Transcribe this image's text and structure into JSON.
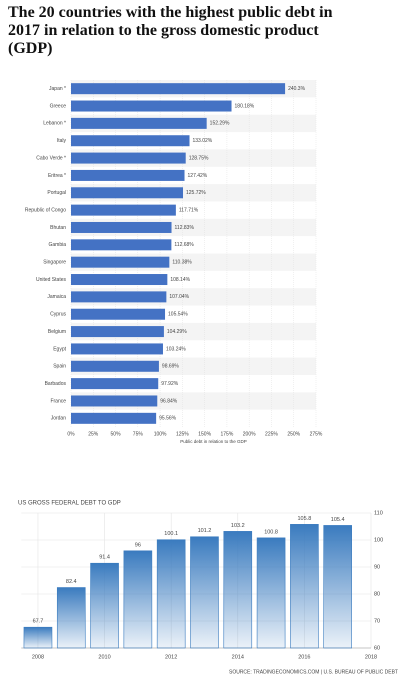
{
  "chart_data": [
    {
      "type": "barh",
      "title": "The 20 countries with the highest public debt in 2017 in relation to the gross domestic product (GDP)",
      "categories": [
        "Japan *",
        "Greece",
        "Lebanon *",
        "Italy",
        "Cabo Verde *",
        "Eritrea *",
        "Portugal",
        "Republic of Congo",
        "Bhutan",
        "Gambia",
        "Singapore",
        "United States",
        "Jamaica",
        "Cyprus",
        "Belgium",
        "Egypt",
        "Spain",
        "Barbados",
        "France",
        "Jordan"
      ],
      "values": [
        240.3,
        180.18,
        152.29,
        133.02,
        128.75,
        127.42,
        125.72,
        117.71,
        112.83,
        112.68,
        110.38,
        108.14,
        107.04,
        105.54,
        104.29,
        103.24,
        98.69,
        97.92,
        96.84,
        95.56
      ],
      "value_labels": [
        "240.3%",
        "180.18%",
        "152.29%",
        "133.02%",
        "128.75%",
        "127.42%",
        "125.72%",
        "117.71%",
        "112.83%",
        "112.68%",
        "110.38%",
        "108.14%",
        "107.04%",
        "105.54%",
        "104.29%",
        "103.24%",
        "98.69%",
        "97.92%",
        "96.84%",
        "95.56%"
      ],
      "color": "#4472c4",
      "xlabel": "Public debt in relation to the GDP",
      "xlim": [
        0,
        275
      ],
      "xticks": [
        {
          "value": 0,
          "label": "0%"
        },
        {
          "value": 25,
          "label": "25%"
        },
        {
          "value": 50,
          "label": "50%"
        },
        {
          "value": 75,
          "label": "75%"
        },
        {
          "value": 100,
          "label": "100%"
        },
        {
          "value": 125,
          "label": "125%"
        },
        {
          "value": 150,
          "label": "150%"
        },
        {
          "value": 175,
          "label": "175%"
        },
        {
          "value": 200,
          "label": "200%"
        },
        {
          "value": 225,
          "label": "225%"
        },
        {
          "value": 250,
          "label": "250%"
        },
        {
          "value": 275,
          "label": "275%"
        }
      ],
      "grid": true
    },
    {
      "type": "bar",
      "title": "US GROSS FEDERAL DEBT TO GDP",
      "x": [
        2008,
        2009,
        2010,
        2011,
        2012,
        2013,
        2014,
        2015,
        2016,
        2017
      ],
      "values": [
        67.7,
        82.4,
        91.4,
        96,
        100.1,
        101.2,
        103.2,
        100.8,
        105.8,
        105.4
      ],
      "color": "#3a7bbf",
      "xlim": [
        2007.5,
        2018
      ],
      "xticks": [
        2008,
        2010,
        2012,
        2014,
        2016,
        2018
      ],
      "ylim": [
        60,
        110
      ],
      "yticks": [
        60,
        70,
        80,
        90,
        100,
        110
      ],
      "grid": true,
      "source": "SOURCE: TRADINGECONOMICS.COM | U.S. BUREAU OF PUBLIC DEBT"
    }
  ]
}
